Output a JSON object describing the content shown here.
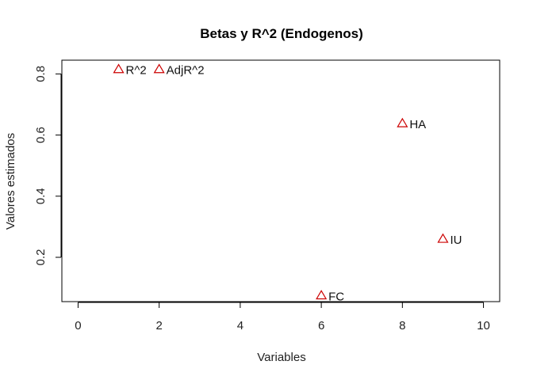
{
  "chart_data": {
    "type": "scatter",
    "title": "Betas y R^2 (Endogenos)",
    "xlabel": "Variables",
    "ylabel": "Valores estimados",
    "xlim": [
      -0.4,
      10.4
    ],
    "ylim": [
      0.055,
      0.845
    ],
    "xticks": [
      0,
      2,
      4,
      6,
      8,
      10
    ],
    "yticks": [
      0.2,
      0.4,
      0.6,
      0.8
    ],
    "xtick_labels": [
      "0",
      "2",
      "4",
      "6",
      "8",
      "10"
    ],
    "ytick_labels": [
      "0.2",
      "0.4",
      "0.6",
      "0.8"
    ],
    "grid": false,
    "marker_color": "#cc0000",
    "marker": "open-triangle",
    "points": [
      {
        "x": 1,
        "y": 0.815,
        "label": "R^2"
      },
      {
        "x": 2,
        "y": 0.815,
        "label": "AdjR^2"
      },
      {
        "x": 6,
        "y": 0.075,
        "label": "FC"
      },
      {
        "x": 8,
        "y": 0.638,
        "label": "HA"
      },
      {
        "x": 9,
        "y": 0.26,
        "label": "IU"
      }
    ]
  }
}
